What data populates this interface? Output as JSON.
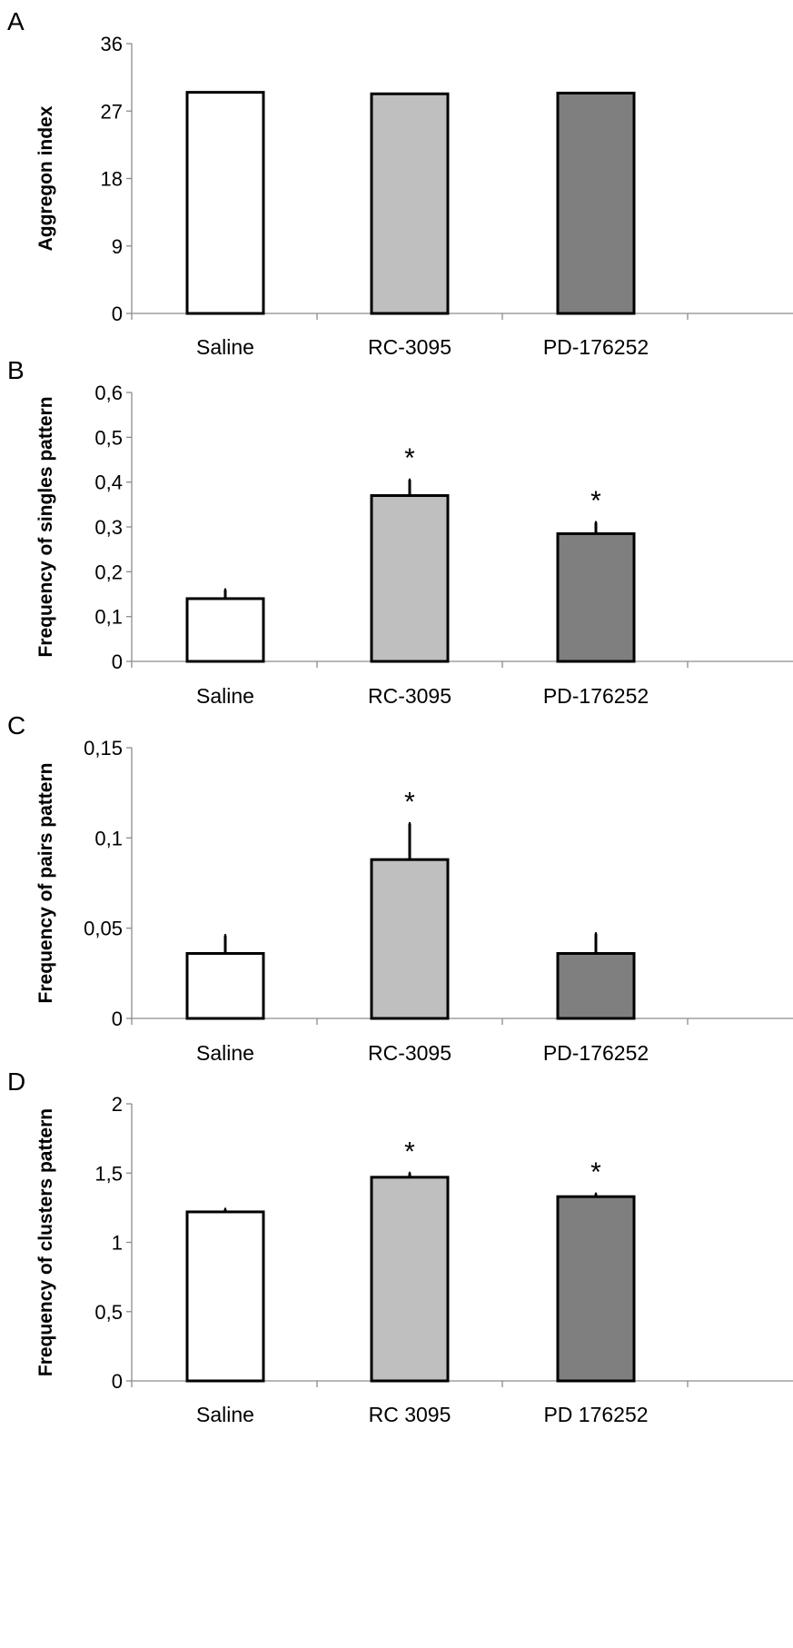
{
  "chart_data": [
    {
      "type": "bar",
      "panel": "A",
      "categories": [
        "Saline",
        "RC-3095",
        "PD-176252"
      ],
      "values": [
        29.5,
        29.3,
        29.4
      ],
      "errors": [
        0,
        0,
        0
      ],
      "significant": [
        false,
        false,
        false
      ],
      "ylabel": "Aggregon index",
      "ylim": [
        0,
        36
      ],
      "yticks": [
        "0",
        "9",
        "18",
        "27",
        "36"
      ],
      "bar_colors": [
        "#ffffff",
        "#bfbfbf",
        "#7f7f7f"
      ]
    },
    {
      "type": "bar",
      "panel": "B",
      "categories": [
        "Saline",
        "RC-3095",
        "PD-176252"
      ],
      "values": [
        0.14,
        0.37,
        0.285
      ],
      "errors": [
        0.02,
        0.035,
        0.025
      ],
      "significant": [
        false,
        true,
        true
      ],
      "ylabel": "Frequency of singles pattern",
      "ylim": [
        0,
        0.6
      ],
      "yticks": [
        "0",
        "0,1",
        "0,2",
        "0,3",
        "0,4",
        "0,5",
        "0,6"
      ],
      "bar_colors": [
        "#ffffff",
        "#bfbfbf",
        "#7f7f7f"
      ]
    },
    {
      "type": "bar",
      "panel": "C",
      "categories": [
        "Saline",
        "RC-3095",
        "PD-176252"
      ],
      "values": [
        0.036,
        0.088,
        0.036
      ],
      "errors": [
        0.01,
        0.02,
        0.011
      ],
      "significant": [
        false,
        true,
        false
      ],
      "ylabel": "Frequency of pairs pattern",
      "ylim": [
        0,
        0.15
      ],
      "yticks": [
        "0",
        "0,05",
        "0,1",
        "0,15"
      ],
      "bar_colors": [
        "#ffffff",
        "#bfbfbf",
        "#7f7f7f"
      ]
    },
    {
      "type": "bar",
      "panel": "D",
      "categories": [
        "Saline",
        "RC 3095",
        "PD 176252"
      ],
      "values": [
        1.22,
        1.47,
        1.33
      ],
      "errors": [
        0.02,
        0.03,
        0.02
      ],
      "significant": [
        false,
        true,
        true
      ],
      "ylabel": "Frequency of clusters pattern",
      "ylim": [
        0,
        2
      ],
      "yticks": [
        "0",
        "0,5",
        "1",
        "1,5",
        "2"
      ],
      "bar_colors": [
        "#ffffff",
        "#bfbfbf",
        "#7f7f7f"
      ]
    }
  ],
  "significance_marker": "*"
}
